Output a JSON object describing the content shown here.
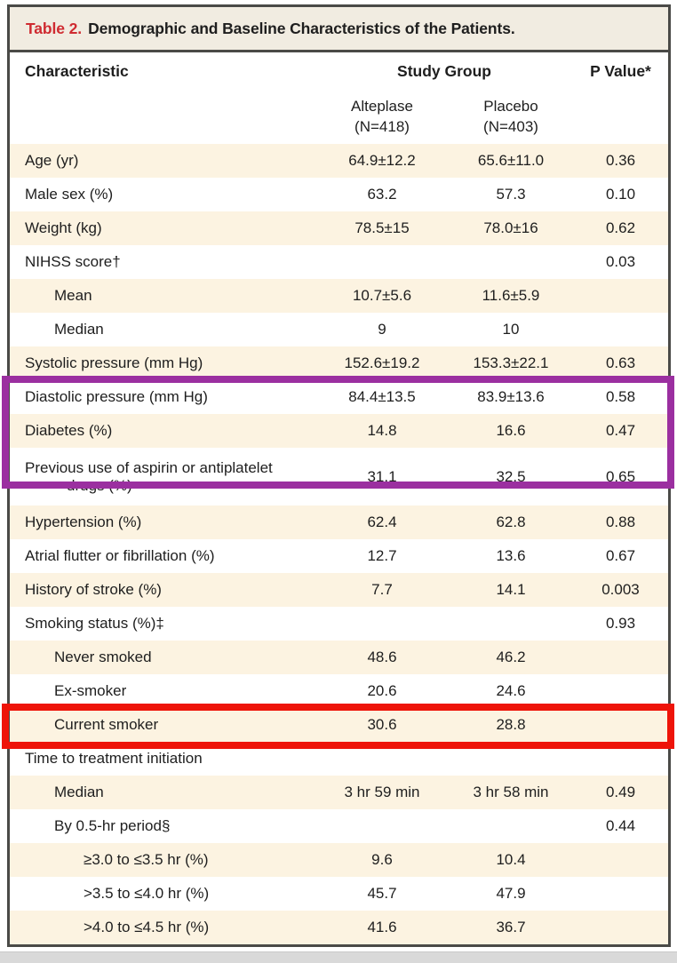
{
  "table": {
    "title_label": "Table 2.",
    "title_text": "Demographic and Baseline Characteristics of the Patients.",
    "header": {
      "characteristic": "Characteristic",
      "study_group": "Study Group",
      "p_value": "P Value*"
    },
    "columns": [
      {
        "name": "alteplase",
        "line1": "Alteplase",
        "line2": "(N=418)"
      },
      {
        "name": "placebo",
        "line1": "Placebo",
        "line2": "(N=403)"
      }
    ],
    "rows": [
      {
        "label": "Age (yr)",
        "indent": 0,
        "alteplase": "64.9±12.2",
        "placebo": "65.6±11.0",
        "p": "0.36",
        "shaded": true
      },
      {
        "label": "Male sex (%)",
        "indent": 0,
        "alteplase": "63.2",
        "placebo": "57.3",
        "p": "0.10",
        "shaded": false
      },
      {
        "label": "Weight (kg)",
        "indent": 0,
        "alteplase": "78.5±15",
        "placebo": "78.0±16",
        "p": "0.62",
        "shaded": true
      },
      {
        "label": "NIHSS score†",
        "indent": 0,
        "alteplase": "",
        "placebo": "",
        "p": "0.03",
        "shaded": false
      },
      {
        "label": "Mean",
        "indent": 1,
        "alteplase": "10.7±5.6",
        "placebo": "11.6±5.9",
        "p": "",
        "shaded": true
      },
      {
        "label": "Median",
        "indent": 1,
        "alteplase": "9",
        "placebo": "10",
        "p": "",
        "shaded": false
      },
      {
        "label": "Systolic pressure (mm Hg)",
        "indent": 0,
        "alteplase": "152.6±19.2",
        "placebo": "153.3±22.1",
        "p": "0.63",
        "shaded": true
      },
      {
        "label": "Diastolic pressure (mm Hg)",
        "indent": 0,
        "alteplase": "84.4±13.5",
        "placebo": "83.9±13.6",
        "p": "0.58",
        "shaded": false
      },
      {
        "label": "Diabetes (%)",
        "indent": 0,
        "alteplase": "14.8",
        "placebo": "16.6",
        "p": "0.47",
        "shaded": true
      },
      {
        "label": "Previous use of aspirin or antiplatelet",
        "label2": "drugs (%)",
        "indent": 0,
        "alteplase": "31.1",
        "placebo": "32.5",
        "p": "0.65",
        "shaded": false,
        "tall": true
      },
      {
        "label": "Hypertension (%)",
        "indent": 0,
        "alteplase": "62.4",
        "placebo": "62.8",
        "p": "0.88",
        "shaded": true
      },
      {
        "label": "Atrial flutter or fibrillation (%)",
        "indent": 0,
        "alteplase": "12.7",
        "placebo": "13.6",
        "p": "0.67",
        "shaded": false
      },
      {
        "label": "History of stroke (%)",
        "indent": 0,
        "alteplase": "7.7",
        "placebo": "14.1",
        "p": "0.003",
        "shaded": true
      },
      {
        "label": "Smoking status (%)‡",
        "indent": 0,
        "alteplase": "",
        "placebo": "",
        "p": "0.93",
        "shaded": false
      },
      {
        "label": "Never smoked",
        "indent": 1,
        "alteplase": "48.6",
        "placebo": "46.2",
        "p": "",
        "shaded": true
      },
      {
        "label": "Ex-smoker",
        "indent": 1,
        "alteplase": "20.6",
        "placebo": "24.6",
        "p": "",
        "shaded": false
      },
      {
        "label": "Current smoker",
        "indent": 1,
        "alteplase": "30.6",
        "placebo": "28.8",
        "p": "",
        "shaded": true
      },
      {
        "label": "Time to treatment initiation",
        "indent": 0,
        "alteplase": "",
        "placebo": "",
        "p": "",
        "shaded": false
      },
      {
        "label": "Median",
        "indent": 1,
        "alteplase": "3 hr 59 min",
        "placebo": "3 hr 58 min",
        "p": "0.49",
        "shaded": true
      },
      {
        "label": "By 0.5-hr period§",
        "indent": 1,
        "alteplase": "",
        "placebo": "",
        "p": "0.44",
        "shaded": false
      },
      {
        "label": "≥3.0 to ≤3.5 hr (%)",
        "indent": 2,
        "alteplase": "9.6",
        "placebo": "10.4",
        "p": "",
        "shaded": true
      },
      {
        "label": ">3.5 to ≤4.0 hr (%)",
        "indent": 2,
        "alteplase": "45.7",
        "placebo": "47.9",
        "p": "",
        "shaded": false
      },
      {
        "label": ">4.0 to ≤4.5 hr (%)",
        "indent": 2,
        "alteplase": "41.6",
        "placebo": "36.7",
        "p": "",
        "shaded": true
      }
    ],
    "colors": {
      "title_label_red": "#cf2b31",
      "title_band_bg": "#f1ece1",
      "shaded_row_bg": "#fcf3e1",
      "frame_border": "#4a4a47"
    }
  },
  "annotations": [
    {
      "name": "purple-annotation-box",
      "color": "#9b2fa0",
      "row_start": 3,
      "row_end": 5
    },
    {
      "name": "red-annotation-box",
      "color": "#ee1409",
      "row_start": 12,
      "row_end": 12
    }
  ],
  "page": {
    "bottom_strip_color": "#d9d9d9"
  }
}
